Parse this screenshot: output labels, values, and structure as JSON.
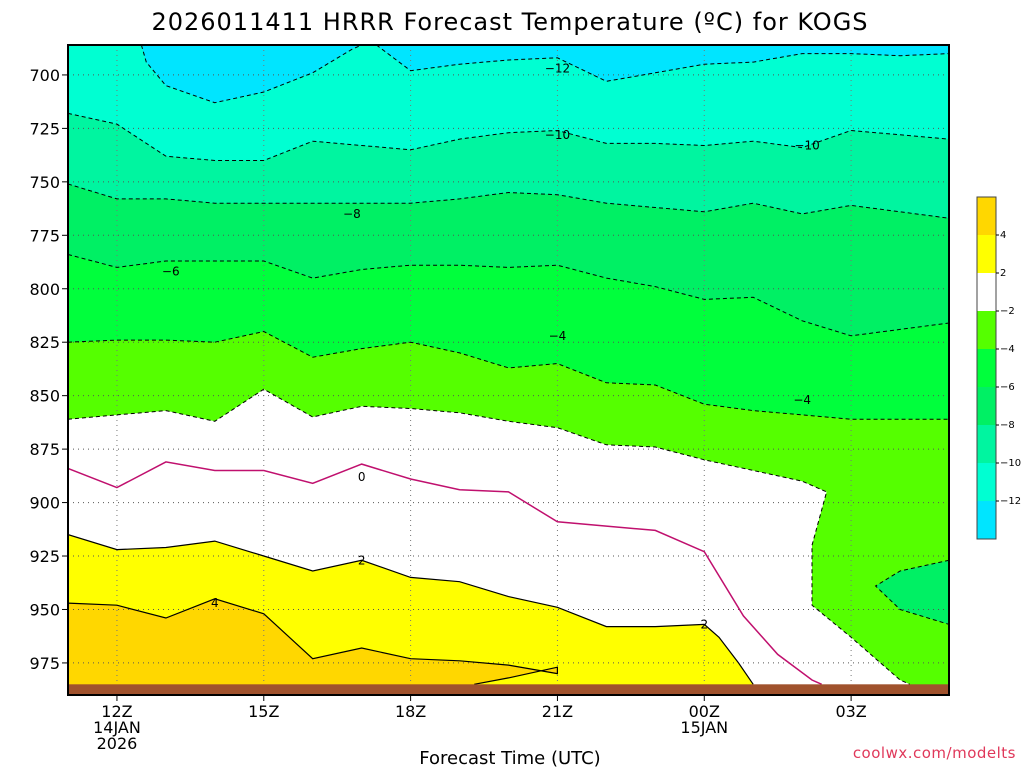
{
  "chart_data": {
    "type": "contour",
    "title": "2026011411 HRRR Forecast Temperature (ºC) for KOGS",
    "xlabel": "Forecast Time (UTC)",
    "ylabel": "",
    "credit": "coolwx.com/modelts",
    "x_ticks": [
      {
        "hour": 12,
        "lines": [
          "12Z",
          "14JAN",
          "2026"
        ]
      },
      {
        "hour": 15,
        "lines": [
          "15Z"
        ]
      },
      {
        "hour": 18,
        "lines": [
          "18Z"
        ]
      },
      {
        "hour": 21,
        "lines": [
          "21Z"
        ]
      },
      {
        "hour": 24,
        "lines": [
          "00Z",
          "15JAN"
        ]
      },
      {
        "hour": 27,
        "lines": [
          "03Z"
        ]
      }
    ],
    "xlim": [
      11,
      29
    ],
    "y_ticks": [
      700,
      725,
      750,
      775,
      800,
      825,
      850,
      875,
      900,
      925,
      950,
      975
    ],
    "ylim": [
      686,
      990
    ],
    "surface_pressure": 985,
    "grid": true,
    "colorbar": {
      "placement": "right",
      "bins": [
        {
          "from": 4,
          "to": 6,
          "color": "#ffd700"
        },
        {
          "from": 2,
          "to": 4,
          "color": "#ffff00"
        },
        {
          "from": -2,
          "to": 2,
          "color": "#ffffff"
        },
        {
          "from": -4,
          "to": -2,
          "color": "#55ff00"
        },
        {
          "from": -6,
          "to": -4,
          "color": "#00ff3c"
        },
        {
          "from": -8,
          "to": -6,
          "color": "#00f064"
        },
        {
          "from": -10,
          "to": -8,
          "color": "#00f5a0"
        },
        {
          "from": -12,
          "to": -10,
          "color": "#00ffd2"
        },
        {
          "from": -14,
          "to": -12,
          "color": "#00e5ff"
        }
      ],
      "tick_labels": [
        "4",
        "2",
        "−2",
        "−4",
        "−6",
        "−8",
        "−10",
        "−12"
      ]
    },
    "contour_labels": [
      {
        "text": "−12",
        "hour": 21.0,
        "pressure": 697
      },
      {
        "text": "−10",
        "hour": 21.0,
        "pressure": 728
      },
      {
        "text": "−10",
        "hour": 26.1,
        "pressure": 733
      },
      {
        "text": "−8",
        "hour": 16.8,
        "pressure": 765
      },
      {
        "text": "−6",
        "hour": 13.1,
        "pressure": 792
      },
      {
        "text": "−4",
        "hour": 21.0,
        "pressure": 822
      },
      {
        "text": "−4",
        "hour": 26.0,
        "pressure": 852
      },
      {
        "text": "0",
        "hour": 17.0,
        "pressure": 888
      },
      {
        "text": "2",
        "hour": 17.0,
        "pressure": 927
      },
      {
        "text": "4",
        "hour": 14.0,
        "pressure": 947
      },
      {
        "text": "2",
        "hour": 24.0,
        "pressure": 957
      }
    ],
    "isotherms": [
      {
        "value": -12,
        "points": [
          [
            12.5,
            686
          ],
          [
            12.6,
            694
          ],
          [
            13.0,
            705
          ],
          [
            14.0,
            713
          ],
          [
            15.0,
            708
          ],
          [
            16.0,
            699
          ],
          [
            16.8,
            688
          ],
          [
            17.0,
            686
          ]
        ]
      },
      {
        "value": -12,
        "points": [
          [
            17.3,
            686
          ],
          [
            18.0,
            698
          ],
          [
            19.0,
            695
          ],
          [
            20.0,
            693
          ],
          [
            21.0,
            692
          ],
          [
            22.0,
            703
          ],
          [
            23.0,
            699
          ],
          [
            24.0,
            695
          ],
          [
            25.0,
            694
          ],
          [
            26.0,
            690
          ],
          [
            27.0,
            690
          ],
          [
            28.0,
            691
          ],
          [
            29.0,
            690
          ]
        ]
      },
      {
        "value": -10,
        "points": [
          [
            11,
            718
          ],
          [
            12,
            723
          ],
          [
            13,
            738
          ],
          [
            14,
            740
          ],
          [
            15,
            740
          ],
          [
            16,
            731
          ],
          [
            17,
            733
          ],
          [
            18,
            735
          ],
          [
            19,
            730
          ],
          [
            20,
            727
          ],
          [
            21,
            726
          ],
          [
            22,
            732
          ],
          [
            23,
            732
          ],
          [
            24,
            733
          ],
          [
            25,
            731
          ],
          [
            26,
            734
          ],
          [
            27,
            726
          ],
          [
            28,
            728
          ],
          [
            29,
            730
          ]
        ]
      },
      {
        "value": -8,
        "points": [
          [
            11,
            751
          ],
          [
            12,
            758
          ],
          [
            13,
            758
          ],
          [
            14,
            760
          ],
          [
            15,
            760
          ],
          [
            16,
            760
          ],
          [
            17,
            760
          ],
          [
            18,
            760
          ],
          [
            19,
            758
          ],
          [
            20,
            755
          ],
          [
            21,
            756
          ],
          [
            22,
            760
          ],
          [
            23,
            762
          ],
          [
            24,
            764
          ],
          [
            25,
            760
          ],
          [
            26,
            765
          ],
          [
            27,
            761
          ],
          [
            28,
            764
          ],
          [
            29,
            767
          ]
        ]
      },
      {
        "value": -6,
        "points": [
          [
            11,
            784
          ],
          [
            12,
            790
          ],
          [
            13,
            787
          ],
          [
            14,
            787
          ],
          [
            15,
            787
          ],
          [
            16,
            795
          ],
          [
            17,
            791
          ],
          [
            18,
            789
          ],
          [
            19,
            789
          ],
          [
            20,
            790
          ],
          [
            21,
            789
          ],
          [
            22,
            795
          ],
          [
            23,
            799
          ],
          [
            24,
            805
          ],
          [
            25,
            804
          ],
          [
            26,
            815
          ],
          [
            27,
            822
          ],
          [
            28,
            819
          ],
          [
            29,
            816
          ]
        ]
      },
      {
        "value": -4,
        "points": [
          [
            11,
            825
          ],
          [
            12,
            824
          ],
          [
            13,
            824
          ],
          [
            14,
            825
          ],
          [
            15,
            820
          ],
          [
            16,
            832
          ],
          [
            17,
            828
          ],
          [
            18,
            825
          ],
          [
            19,
            830
          ],
          [
            20,
            837
          ],
          [
            21,
            835
          ],
          [
            22,
            844
          ],
          [
            23,
            845
          ],
          [
            24,
            854
          ],
          [
            25,
            857
          ],
          [
            26,
            859
          ],
          [
            27,
            861
          ],
          [
            28,
            861
          ],
          [
            29,
            861
          ]
        ]
      },
      {
        "value": -2,
        "points": [
          [
            11,
            861
          ],
          [
            12,
            859
          ],
          [
            13,
            857
          ],
          [
            14,
            862
          ],
          [
            15,
            847
          ],
          [
            16,
            860
          ],
          [
            17,
            855
          ],
          [
            18,
            856
          ],
          [
            19,
            858
          ],
          [
            20,
            862
          ],
          [
            21,
            865
          ],
          [
            22,
            873
          ],
          [
            23,
            874
          ],
          [
            24,
            880
          ],
          [
            25,
            885
          ],
          [
            26,
            890
          ],
          [
            26.5,
            895
          ],
          [
            26.2,
            920
          ],
          [
            26.2,
            948
          ],
          [
            27.0,
            963
          ],
          [
            28.0,
            983
          ],
          [
            28.2,
            985
          ]
        ]
      },
      {
        "value": -2,
        "points": [
          [
            29,
            927
          ],
          [
            28.0,
            932
          ],
          [
            27.5,
            939
          ],
          [
            28.0,
            950
          ],
          [
            29,
            957
          ]
        ]
      },
      {
        "value": 0,
        "points": [
          [
            11,
            884
          ],
          [
            12,
            893
          ],
          [
            13,
            881
          ],
          [
            14,
            885
          ],
          [
            15,
            885
          ],
          [
            16,
            891
          ],
          [
            17,
            882
          ],
          [
            18,
            889
          ],
          [
            19,
            894
          ],
          [
            20,
            895
          ],
          [
            21,
            909
          ],
          [
            22,
            911
          ],
          [
            23,
            913
          ],
          [
            24,
            923
          ],
          [
            24.8,
            953
          ],
          [
            25.5,
            971
          ],
          [
            26.2,
            983
          ],
          [
            26.4,
            985
          ]
        ]
      },
      {
        "value": 2,
        "points": [
          [
            11,
            915
          ],
          [
            12,
            922
          ],
          [
            13,
            921
          ],
          [
            14,
            918
          ],
          [
            15,
            925
          ],
          [
            16,
            932
          ],
          [
            17,
            927
          ],
          [
            18,
            935
          ],
          [
            19,
            937
          ],
          [
            20,
            944
          ],
          [
            21,
            949
          ],
          [
            22,
            958
          ],
          [
            23,
            958
          ],
          [
            24,
            957
          ],
          [
            24.3,
            963
          ],
          [
            24.7,
            975
          ],
          [
            25.0,
            985
          ]
        ]
      },
      {
        "value": 4,
        "points": [
          [
            11,
            947
          ],
          [
            12,
            948
          ],
          [
            13,
            954
          ],
          [
            14,
            945
          ],
          [
            15,
            952
          ],
          [
            16,
            973
          ],
          [
            17,
            968
          ],
          [
            18,
            973
          ],
          [
            19,
            974
          ],
          [
            20,
            976
          ],
          [
            21,
            980
          ],
          [
            21.0,
            977
          ],
          [
            20.0,
            982
          ],
          [
            19.3,
            985
          ]
        ]
      }
    ]
  }
}
